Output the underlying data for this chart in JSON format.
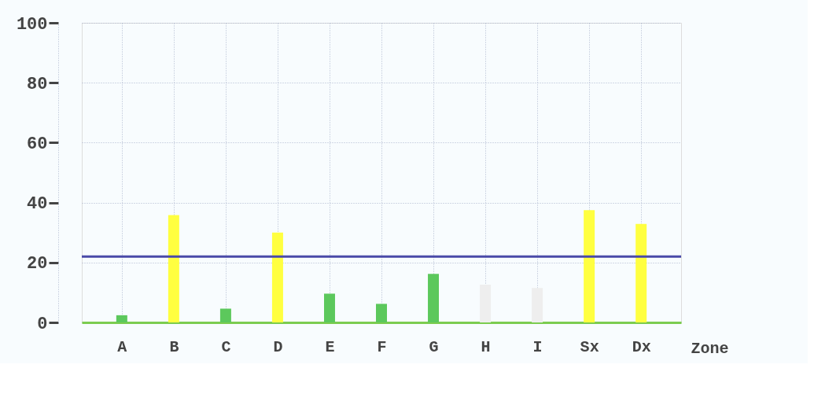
{
  "chart_data": {
    "type": "bar",
    "xlabel": "Zone",
    "categories": [
      "A",
      "B",
      "C",
      "D",
      "E",
      "F",
      "G",
      "H",
      "I",
      "Sx",
      "Dx"
    ],
    "values": [
      2.4,
      35.8,
      4.6,
      30,
      9.6,
      6.2,
      16.2,
      12.6,
      11.5,
      37.5,
      32.9
    ],
    "colors": [
      "#5cc85c",
      "#ffff40",
      "#5cc85c",
      "#ffff40",
      "#5cc85c",
      "#5cc85c",
      "#5cc85c",
      "#eeeeee",
      "#eeeeee",
      "#ffff40",
      "#ffff40"
    ],
    "ylim": [
      0,
      100
    ],
    "yticks": [
      0,
      20,
      40,
      60,
      80,
      100
    ],
    "ref_lines": [
      {
        "axis": "y",
        "value": 22,
        "color": "#4a4aa8"
      }
    ],
    "grid": true
  }
}
